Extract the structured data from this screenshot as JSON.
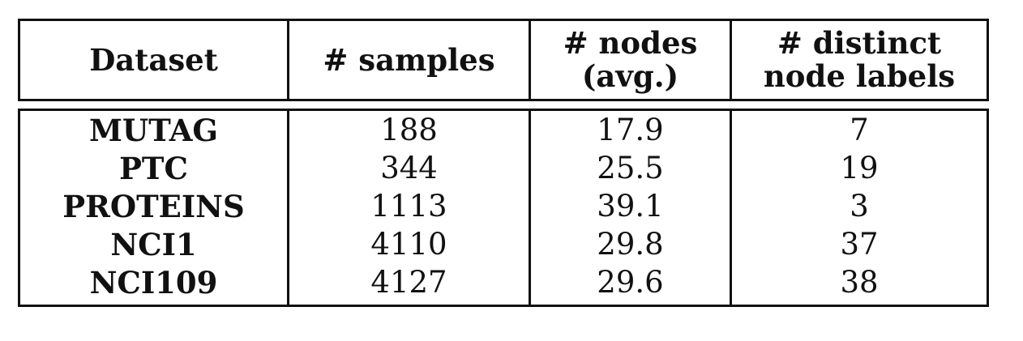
{
  "table": {
    "headers": [
      {
        "lines": [
          "Dataset"
        ]
      },
      {
        "lines": [
          "# samples"
        ]
      },
      {
        "lines": [
          "# nodes",
          "(avg.)"
        ]
      },
      {
        "lines": [
          "# distinct",
          "node labels"
        ]
      }
    ],
    "rows": [
      {
        "dataset": "MUTAG",
        "samples": "188",
        "nodes": "17.9",
        "labels": "7"
      },
      {
        "dataset": "PTC",
        "samples": "344",
        "nodes": "25.5",
        "labels": "19"
      },
      {
        "dataset": "PROTEINS",
        "samples": "1113",
        "nodes": "39.1",
        "labels": "3"
      },
      {
        "dataset": "NCI1",
        "samples": "4110",
        "nodes": "29.8",
        "labels": "37"
      },
      {
        "dataset": "NCI109",
        "samples": "4127",
        "nodes": "29.6",
        "labels": "38"
      }
    ]
  }
}
